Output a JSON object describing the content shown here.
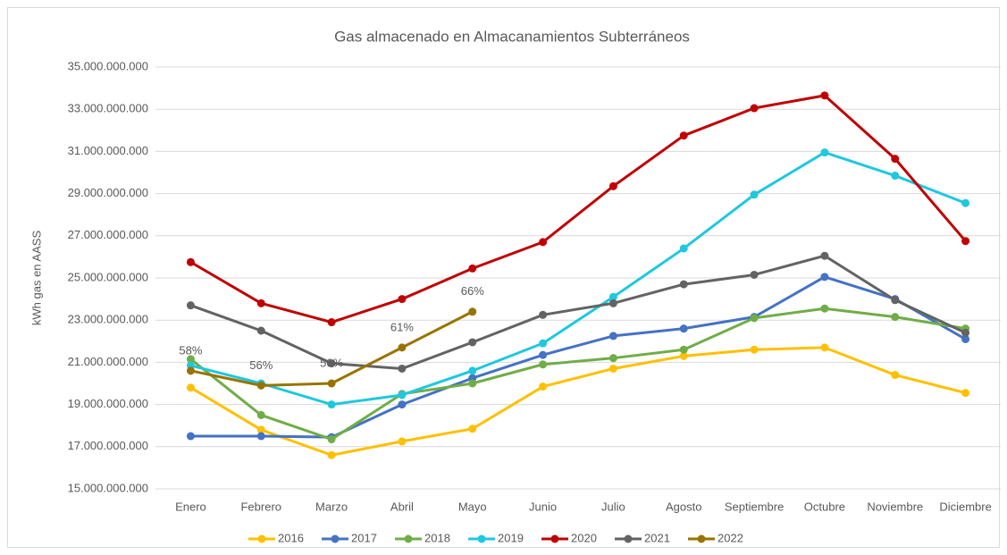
{
  "chart_data": {
    "type": "line",
    "title": "Gas almacenado en Almacanamientos Subterráneos",
    "y_label": "kWh gas en AASS",
    "categories": [
      "Enero",
      "Febrero",
      "Marzo",
      "Abril",
      "Mayo",
      "Junio",
      "Julio",
      "Agosto",
      "Septiembre",
      "Octubre",
      "Noviembre",
      "Diciembre"
    ],
    "ylim": [
      15000000000,
      35000000000
    ],
    "yticks": [
      {
        "value": 15000000000,
        "label": "15.000.000.000"
      },
      {
        "value": 17000000000,
        "label": "17.000.000.000"
      },
      {
        "value": 19000000000,
        "label": "19.000.000.000"
      },
      {
        "value": 21000000000,
        "label": "21.000.000.000"
      },
      {
        "value": 23000000000,
        "label": "23.000.000.000"
      },
      {
        "value": 25000000000,
        "label": "25.000.000.000"
      },
      {
        "value": 27000000000,
        "label": "27.000.000.000"
      },
      {
        "value": 29000000000,
        "label": "29.000.000.000"
      },
      {
        "value": 31000000000,
        "label": "31.000.000.000"
      },
      {
        "value": 33000000000,
        "label": "33.000.000.000"
      },
      {
        "value": 35000000000,
        "label": "35.000.000.000"
      }
    ],
    "grid": true,
    "legend": "bottom",
    "series": [
      {
        "name": "2016",
        "color": "#ffc000",
        "values": [
          19800000000,
          17800000000,
          16600000000,
          17250000000,
          17850000000,
          19850000000,
          20700000000,
          21300000000,
          21600000000,
          21700000000,
          20400000000,
          19550000000
        ]
      },
      {
        "name": "2017",
        "color": "#4472c4",
        "values": [
          17500000000,
          17500000000,
          17450000000,
          19000000000,
          20250000000,
          21350000000,
          22250000000,
          22600000000,
          23150000000,
          25050000000,
          24000000000,
          22100000000
        ]
      },
      {
        "name": "2018",
        "color": "#70ad47",
        "values": [
          21150000000,
          18500000000,
          17350000000,
          19500000000,
          20000000000,
          20900000000,
          21200000000,
          21600000000,
          23100000000,
          23550000000,
          23150000000,
          22600000000
        ]
      },
      {
        "name": "2019",
        "color": "#1fc8de",
        "values": [
          20850000000,
          20000000000,
          19000000000,
          19450000000,
          20600000000,
          21900000000,
          24100000000,
          26400000000,
          28950000000,
          30950000000,
          29850000000,
          28550000000
        ]
      },
      {
        "name": "2020",
        "color": "#c00000",
        "values": [
          25750000000,
          23800000000,
          22900000000,
          24000000000,
          25450000000,
          26700000000,
          29350000000,
          31750000000,
          33050000000,
          33650000000,
          30650000000,
          26750000000
        ]
      },
      {
        "name": "2021",
        "color": "#636363",
        "values": [
          23700000000,
          22500000000,
          20950000000,
          20700000000,
          21950000000,
          23250000000,
          23800000000,
          24700000000,
          25150000000,
          26050000000,
          23950000000,
          22400000000
        ]
      },
      {
        "name": "2022",
        "color": "#997300",
        "values": [
          20600000000,
          19900000000,
          20000000000,
          21700000000,
          23400000000,
          null,
          null,
          null,
          null,
          null,
          null,
          null
        ],
        "point_labels": [
          "58%",
          "56%",
          "56%",
          "61%",
          "66%",
          null,
          null,
          null,
          null,
          null,
          null,
          null
        ]
      }
    ]
  }
}
